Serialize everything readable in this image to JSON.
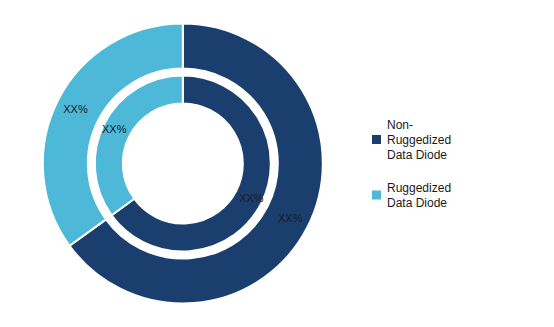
{
  "chart_data": {
    "type": "pie",
    "categories": [
      "Non-\nRuggedized\nData Diode",
      "Ruggedized\nData Diode"
    ],
    "colors": [
      "#1a3f6f",
      "#4db8d8"
    ],
    "series": [
      {
        "values": [
          65,
          35
        ],
        "value_labels": [
          "XX%",
          "XX%"
        ]
      },
      {
        "values": [
          65,
          35
        ],
        "value_labels": [
          "XX%",
          "XX%"
        ]
      }
    ],
    "data_labels": true,
    "legend": "right"
  }
}
